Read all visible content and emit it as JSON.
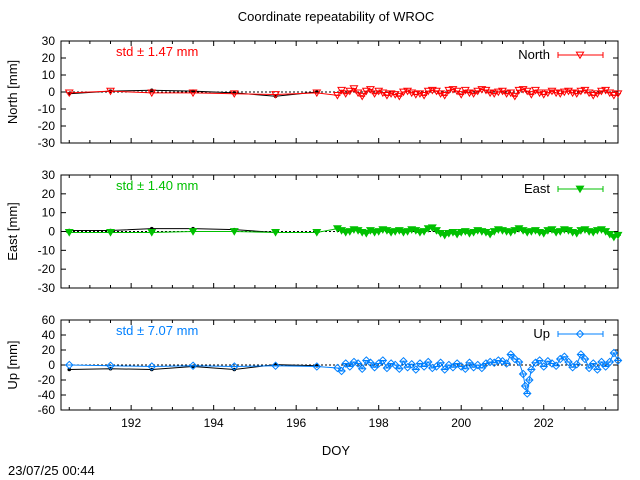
{
  "title": "Coordinate repeatability of WROC",
  "footer_timestamp": "23/07/25 00:44",
  "xlabel": "DOY",
  "colors": {
    "north": "#ff0000",
    "east": "#00c000",
    "up": "#0080ff",
    "reference": "#000000"
  },
  "chart_data": [
    {
      "type": "line",
      "panel": "north",
      "ylabel": "North [mm]",
      "ylim": [
        -30,
        30
      ],
      "yticks": [
        -30,
        -20,
        -10,
        0,
        10,
        20,
        30
      ],
      "xlim": [
        190.3,
        203.8
      ],
      "xticks": [
        192,
        194,
        196,
        198,
        200,
        202
      ],
      "std_label": "std ± 1.47 mm",
      "legend": "North",
      "marker": "triangle-down-open",
      "reference": {
        "x": [
          190.5,
          191.5,
          192.5,
          193.5,
          194.5,
          195.5,
          196.5
        ],
        "y": [
          -1.0,
          0.5,
          1.0,
          0.5,
          -0.5,
          -2.5,
          0.0
        ]
      },
      "series": [
        {
          "x": [
            190.5,
            191.5,
            192.5,
            193.5,
            194.5,
            195.5,
            196.5,
            197.0,
            197.1,
            197.2,
            197.3,
            197.4,
            197.5,
            197.6,
            197.7,
            197.8,
            197.9,
            198.0,
            198.1,
            198.2,
            198.3,
            198.4,
            198.5,
            198.6,
            198.7,
            198.8,
            198.9,
            199.0,
            199.1,
            199.2,
            199.3,
            199.4,
            199.5,
            199.6,
            199.7,
            199.8,
            199.9,
            200.0,
            200.1,
            200.2,
            200.3,
            200.4,
            200.5,
            200.6,
            200.7,
            200.8,
            200.9,
            201.0,
            201.1,
            201.2,
            201.3,
            201.4,
            201.5,
            201.6,
            201.7,
            201.8,
            201.9,
            202.0,
            202.1,
            202.2,
            202.3,
            202.4,
            202.5,
            202.6,
            202.7,
            202.8,
            202.9,
            203.0,
            203.1,
            203.2,
            203.3,
            203.4,
            203.5,
            203.6,
            203.7,
            203.8
          ],
          "y": [
            -0.5,
            0.5,
            -0.5,
            -0.5,
            -1.0,
            -1.5,
            -0.5,
            -2.0,
            1.0,
            -1.0,
            0.5,
            2.0,
            -0.5,
            -2.5,
            0.5,
            1.5,
            -1.0,
            0.5,
            -0.5,
            -2.0,
            -1.0,
            -1.5,
            -2.5,
            0.0,
            0.5,
            -0.5,
            -1.5,
            -1.0,
            -2.0,
            0.5,
            1.0,
            0.5,
            -1.0,
            -2.0,
            1.0,
            1.5,
            0.5,
            -1.5,
            1.0,
            -0.5,
            -1.0,
            0.5,
            1.5,
            1.0,
            -0.5,
            -1.0,
            0.0,
            0.5,
            -1.0,
            -0.5,
            -2.5,
            1.0,
            1.5,
            0.5,
            -1.5,
            1.0,
            -0.5,
            -1.5,
            -0.5,
            0.5,
            -0.5,
            -1.0,
            0.0,
            0.5,
            -0.5,
            -1.0,
            0.5,
            1.0,
            -0.5,
            -2.0,
            -1.0,
            0.5,
            1.0,
            -0.5,
            -2.0,
            -1.0
          ]
        }
      ]
    },
    {
      "type": "line",
      "panel": "east",
      "ylabel": "East [mm]",
      "ylim": [
        -30,
        30
      ],
      "yticks": [
        -30,
        -20,
        -10,
        0,
        10,
        20,
        30
      ],
      "xlim": [
        190.3,
        203.8
      ],
      "xticks": [
        192,
        194,
        196,
        198,
        200,
        202
      ],
      "std_label": "std ± 1.40 mm",
      "legend": "East",
      "marker": "triangle-down-filled",
      "reference": {
        "x": [
          190.5,
          191.5,
          192.5,
          193.5,
          194.5,
          195.5,
          196.5
        ],
        "y": [
          0.5,
          0.5,
          1.5,
          1.5,
          1.0,
          -0.5,
          -0.5
        ]
      },
      "series": [
        {
          "x": [
            190.5,
            191.5,
            192.5,
            193.5,
            194.5,
            195.5,
            196.5,
            197.0,
            197.1,
            197.2,
            197.3,
            197.4,
            197.5,
            197.6,
            197.7,
            197.8,
            197.9,
            198.0,
            198.1,
            198.2,
            198.3,
            198.4,
            198.5,
            198.6,
            198.7,
            198.8,
            198.9,
            199.0,
            199.1,
            199.2,
            199.3,
            199.4,
            199.5,
            199.6,
            199.7,
            199.8,
            199.9,
            200.0,
            200.1,
            200.2,
            200.3,
            200.4,
            200.5,
            200.6,
            200.7,
            200.8,
            200.9,
            201.0,
            201.1,
            201.2,
            201.3,
            201.4,
            201.5,
            201.6,
            201.7,
            201.8,
            201.9,
            202.0,
            202.1,
            202.2,
            202.3,
            202.4,
            202.5,
            202.6,
            202.7,
            202.8,
            202.9,
            203.0,
            203.1,
            203.2,
            203.3,
            203.4,
            203.5,
            203.6,
            203.7,
            203.8
          ],
          "y": [
            -0.5,
            -0.5,
            -0.5,
            0.0,
            0.0,
            -0.5,
            -0.5,
            1.5,
            0.5,
            -0.5,
            0.0,
            1.0,
            0.5,
            -0.5,
            -1.0,
            0.5,
            -0.5,
            0.0,
            1.0,
            0.5,
            -0.5,
            0.0,
            0.5,
            -0.5,
            0.0,
            1.0,
            0.5,
            -0.5,
            0.0,
            1.5,
            2.0,
            0.5,
            -1.0,
            -2.0,
            -1.0,
            -0.5,
            -1.5,
            -0.5,
            0.0,
            -1.0,
            -0.5,
            0.5,
            0.0,
            -0.5,
            -1.5,
            0.0,
            1.0,
            0.5,
            0.0,
            -0.5,
            0.5,
            1.5,
            0.5,
            -0.5,
            0.0,
            0.5,
            -0.5,
            -1.0,
            0.5,
            1.0,
            -0.5,
            0.0,
            1.0,
            0.5,
            -0.5,
            -1.0,
            0.5,
            1.0,
            0.0,
            -0.5,
            0.5,
            1.0,
            0.0,
            -1.5,
            -3.0,
            -2.0
          ]
        }
      ]
    },
    {
      "type": "line",
      "panel": "up",
      "ylabel": "Up [mm]",
      "ylim": [
        -60,
        60
      ],
      "yticks": [
        -60,
        -40,
        -20,
        0,
        20,
        40,
        60
      ],
      "xlim": [
        190.3,
        203.8
      ],
      "xticks": [
        192,
        194,
        196,
        198,
        200,
        202
      ],
      "std_label": "std ± 7.07 mm",
      "legend": "Up",
      "marker": "diamond-open",
      "reference": {
        "x": [
          190.5,
          191.5,
          192.5,
          193.5,
          194.5,
          195.5,
          196.5
        ],
        "y": [
          -6.0,
          -5.0,
          -6.0,
          -2.0,
          -6.0,
          0.5,
          -1.0
        ]
      },
      "series": [
        {
          "x": [
            190.5,
            191.5,
            192.5,
            193.5,
            194.5,
            195.5,
            196.5,
            197.0,
            197.1,
            197.2,
            197.3,
            197.4,
            197.5,
            197.6,
            197.7,
            197.8,
            197.9,
            198.0,
            198.1,
            198.2,
            198.3,
            198.4,
            198.5,
            198.6,
            198.7,
            198.8,
            198.9,
            199.0,
            199.1,
            199.2,
            199.3,
            199.4,
            199.5,
            199.6,
            199.7,
            199.8,
            199.9,
            200.0,
            200.1,
            200.2,
            200.3,
            200.4,
            200.5,
            200.6,
            200.7,
            200.8,
            200.9,
            201.0,
            201.1,
            201.2,
            201.3,
            201.4,
            201.5,
            201.55,
            201.6,
            201.65,
            201.7,
            201.8,
            201.9,
            202.0,
            202.1,
            202.2,
            202.3,
            202.4,
            202.5,
            202.6,
            202.7,
            202.8,
            202.9,
            203.0,
            203.1,
            203.2,
            203.3,
            203.4,
            203.5,
            203.6,
            203.7,
            203.8
          ],
          "y": [
            0.0,
            -1.0,
            -2.0,
            -1.0,
            -2.0,
            -1.0,
            -2.0,
            -4.0,
            -8.0,
            2.0,
            -2.0,
            4.0,
            2.0,
            -5.0,
            6.0,
            3.0,
            -3.0,
            2.0,
            6.0,
            -4.0,
            2.0,
            0.0,
            -5.0,
            5.0,
            -3.0,
            1.0,
            -6.0,
            2.0,
            -2.0,
            4.0,
            -4.0,
            -2.0,
            3.0,
            -6.0,
            0.0,
            -3.0,
            2.0,
            -2.0,
            -5.0,
            3.0,
            -3.0,
            0.0,
            -4.0,
            2.0,
            4.0,
            3.0,
            6.0,
            5.0,
            2.0,
            14.0,
            8.0,
            4.0,
            -12.0,
            -28.0,
            -38.0,
            -20.0,
            -6.0,
            3.0,
            6.0,
            -2.0,
            5.0,
            2.0,
            -1.0,
            8.0,
            11.0,
            4.0,
            -3.0,
            1.0,
            14.0,
            8.0,
            -4.0,
            2.0,
            -6.0,
            4.0,
            -2.0,
            4.0,
            16.0,
            6.0
          ]
        }
      ]
    }
  ]
}
